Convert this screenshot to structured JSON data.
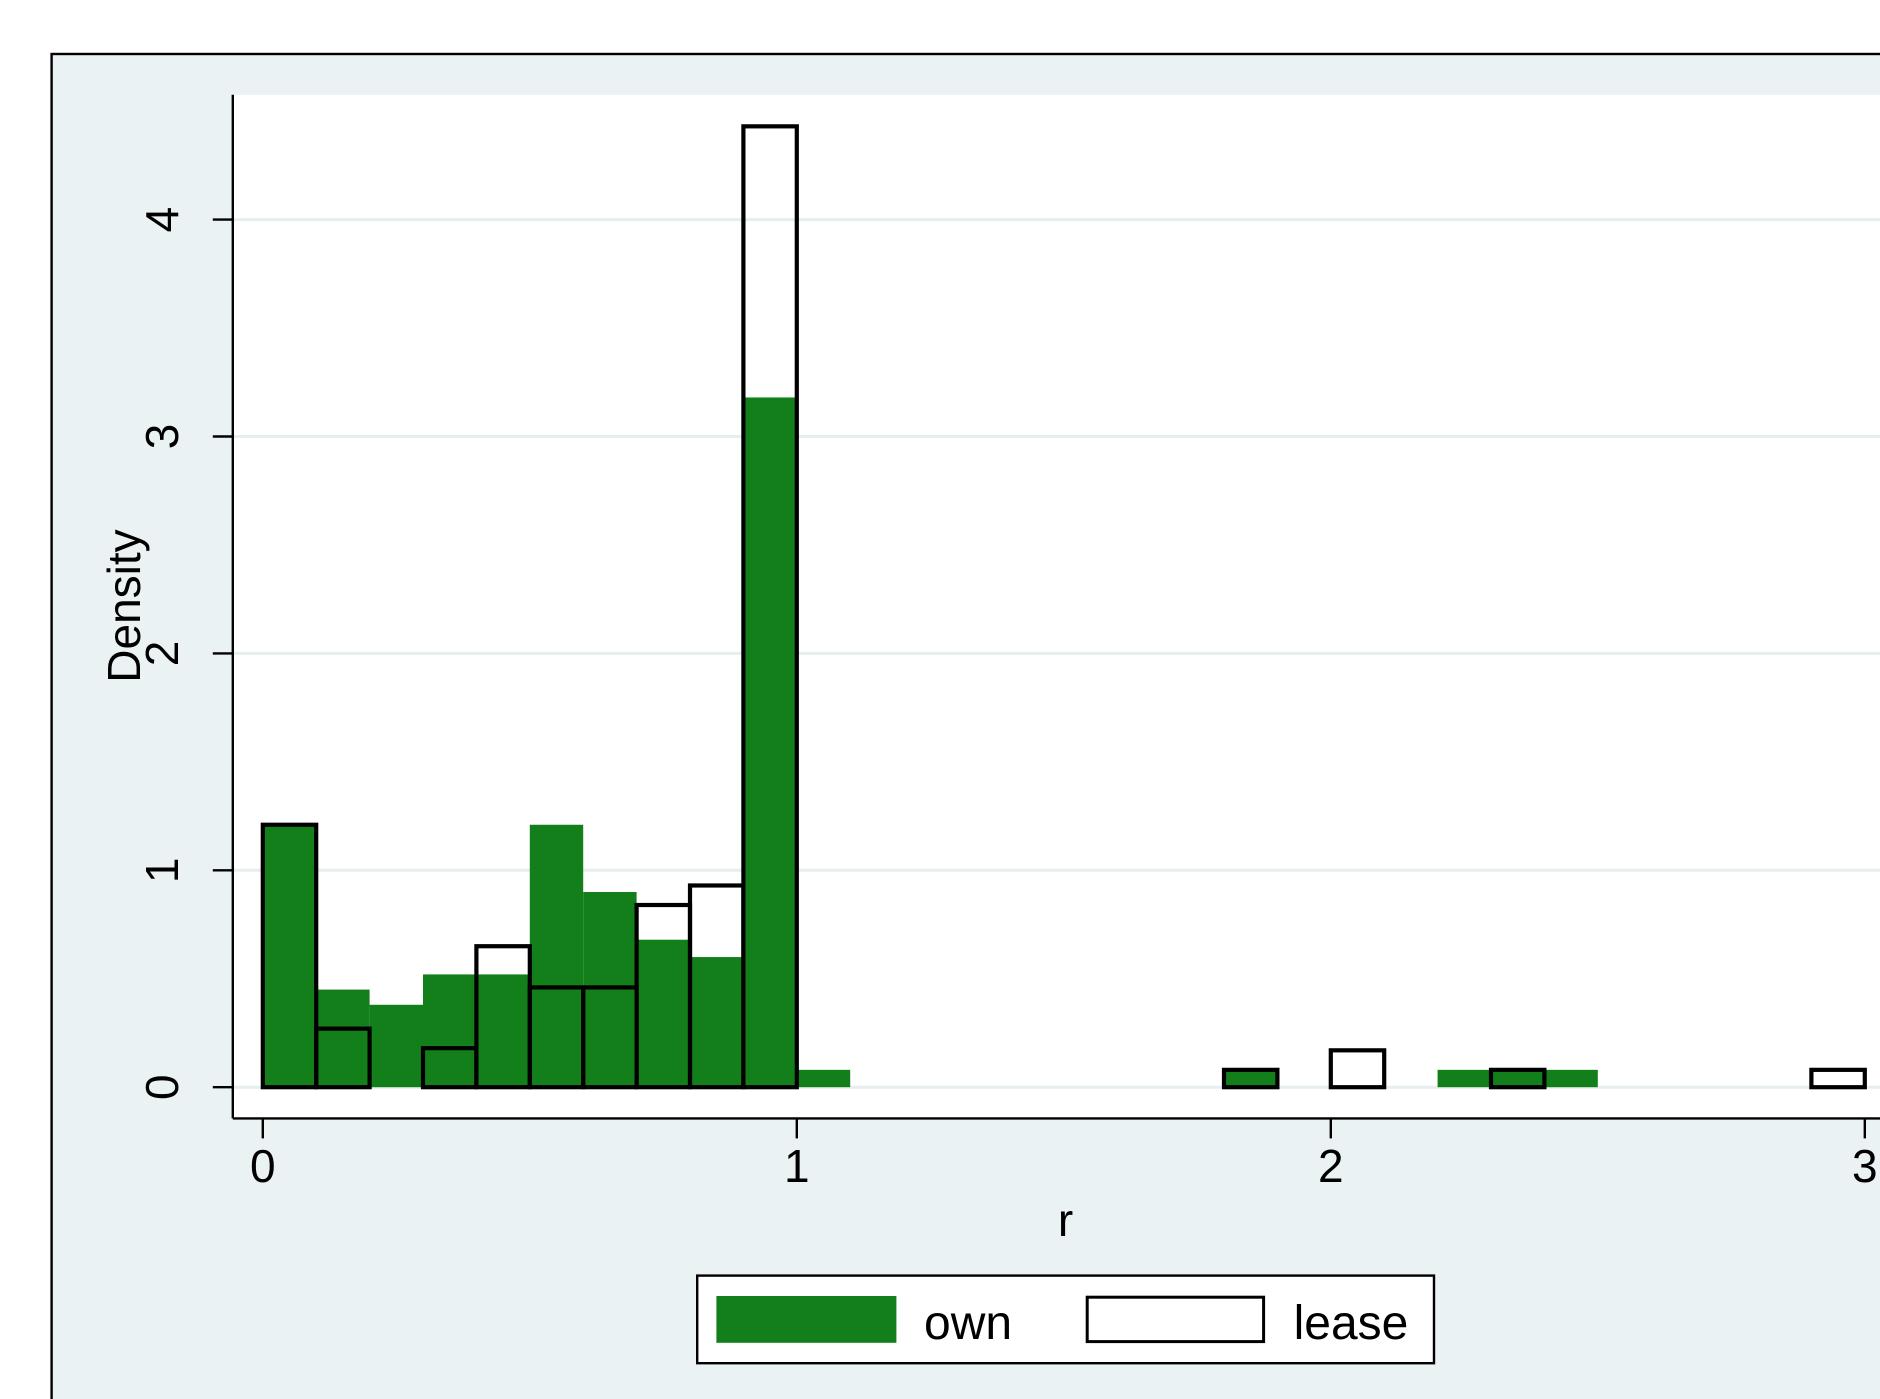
{
  "chart_data": {
    "type": "bar",
    "title": "",
    "xlabel": "r",
    "ylabel": "Density",
    "xlim": [
      -0.055,
      3.1
    ],
    "ylim": [
      -0.14,
      4.55
    ],
    "bin_width": 0.1,
    "x_ticks": [
      0,
      1,
      2,
      3
    ],
    "y_ticks": [
      0,
      1,
      2,
      3,
      4
    ],
    "grid": true,
    "legend_position": "bottom",
    "colors": {
      "own": "#137F1A",
      "lease_fill": "#ffffff",
      "lease_outline": "#000000",
      "graph_region": "#EAF2F3",
      "plot_region": "#ffffff",
      "grid": "#E6EEEF"
    },
    "series": [
      {
        "name": "own",
        "style": "filled",
        "bins": [
          {
            "x": 0.0,
            "value": 1.21
          },
          {
            "x": 0.1,
            "value": 0.45
          },
          {
            "x": 0.2,
            "value": 0.38
          },
          {
            "x": 0.3,
            "value": 0.52
          },
          {
            "x": 0.4,
            "value": 0.52
          },
          {
            "x": 0.5,
            "value": 1.21
          },
          {
            "x": 0.6,
            "value": 0.9
          },
          {
            "x": 0.7,
            "value": 0.68
          },
          {
            "x": 0.8,
            "value": 0.6
          },
          {
            "x": 0.9,
            "value": 3.18
          },
          {
            "x": 1.0,
            "value": 0.08
          },
          {
            "x": 1.8,
            "value": 0.08
          },
          {
            "x": 2.2,
            "value": 0.08
          },
          {
            "x": 2.3,
            "value": 0.08
          },
          {
            "x": 2.4,
            "value": 0.08
          }
        ]
      },
      {
        "name": "lease",
        "style": "outline",
        "bins": [
          {
            "x": 0.0,
            "value": 1.21
          },
          {
            "x": 0.1,
            "value": 0.27
          },
          {
            "x": 0.3,
            "value": 0.18
          },
          {
            "x": 0.4,
            "value": 0.65
          },
          {
            "x": 0.5,
            "value": 0.46
          },
          {
            "x": 0.6,
            "value": 0.46
          },
          {
            "x": 0.7,
            "value": 0.84
          },
          {
            "x": 0.8,
            "value": 0.93
          },
          {
            "x": 0.9,
            "value": 4.43
          },
          {
            "x": 1.8,
            "value": 0.08
          },
          {
            "x": 2.0,
            "value": 0.17
          },
          {
            "x": 2.3,
            "value": 0.08
          },
          {
            "x": 2.9,
            "value": 0.08
          }
        ]
      }
    ]
  }
}
